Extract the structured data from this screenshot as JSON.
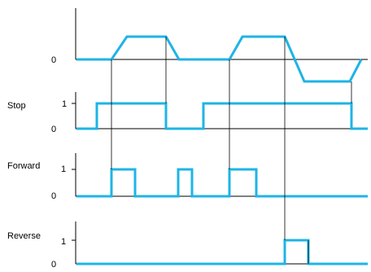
{
  "colors": {
    "signal": "#1eb4e6",
    "axis": "#000000",
    "background": "#ffffff"
  },
  "panels": [
    {
      "id": "speed",
      "name": "",
      "levels": [
        "0"
      ]
    },
    {
      "id": "stop",
      "name": "Stop",
      "levels": [
        "0",
        "1"
      ]
    },
    {
      "id": "forward",
      "name": "Forward",
      "levels": [
        "0",
        "1"
      ]
    },
    {
      "id": "reverse",
      "name": "Reverse",
      "levels": [
        "0",
        "1"
      ]
    }
  ]
}
